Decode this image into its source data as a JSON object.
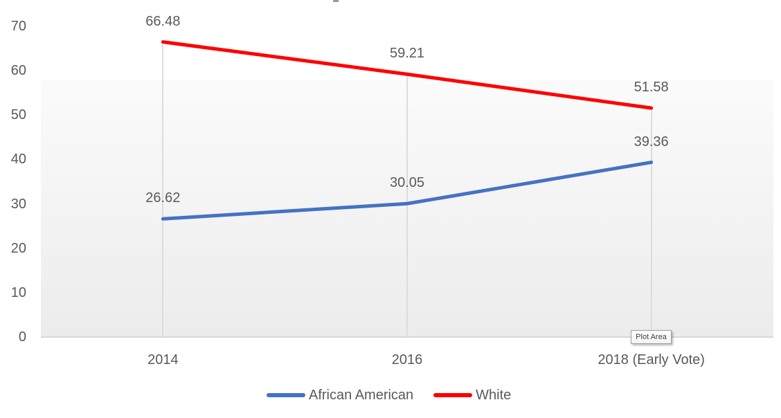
{
  "chart_data": {
    "type": "line",
    "title": "",
    "categories": [
      "2014",
      "2016",
      "2018 (Early Vote)"
    ],
    "series": [
      {
        "name": "African American",
        "color": "#4472C4",
        "values": [
          26.62,
          30.05,
          39.36
        ]
      },
      {
        "name": "White",
        "color": "#FF0000",
        "values": [
          66.48,
          59.21,
          51.58
        ]
      }
    ],
    "ylim": [
      0,
      70
    ],
    "yticks": [
      0,
      10,
      20,
      30,
      40,
      50,
      60,
      70
    ],
    "xlabel": "",
    "ylabel": "",
    "grid": "vertical drop lines at each category, no horizontal gridlines",
    "legend_position": "bottom",
    "data_labels": true,
    "label_format": "0.00"
  },
  "main": {
    "plot_area_tooltip": "Plot Area"
  },
  "colors": {
    "label_text": "#595959",
    "axis_line": "#d8d8d8",
    "drop_line": "#dcdcdc",
    "plot_fill_top": "#fbfbfb",
    "plot_fill_bottom": "#ececec",
    "tooltip_text": "#404040",
    "tooltip_border": "#9e9e9e"
  }
}
